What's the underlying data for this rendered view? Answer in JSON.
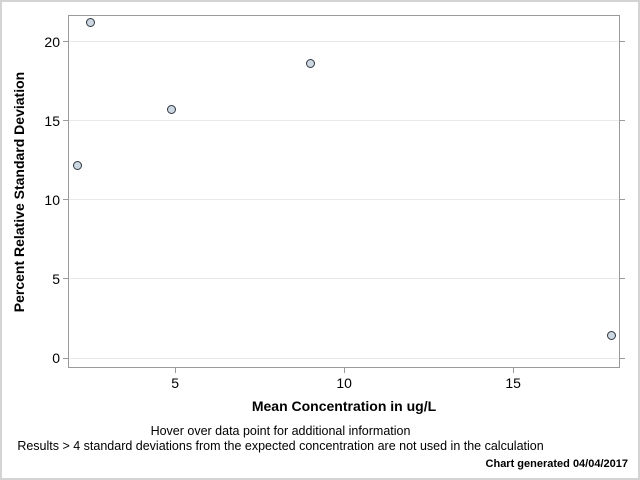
{
  "chart_data": {
    "type": "scatter",
    "title": "",
    "xlabel": "Mean Concentration in ug/L",
    "ylabel": "Percent Relative Standard Deviation",
    "xlim": [
      1.83,
      18.16
    ],
    "ylim": [
      -0.63,
      21.69
    ],
    "x_ticks": [
      5,
      10,
      15
    ],
    "y_ticks": [
      0,
      5,
      10,
      15,
      20
    ],
    "grid": "horizontal",
    "legend": "none",
    "series": [
      {
        "name": "percent-relative-standard-deviation",
        "marker": "circle",
        "points": [
          {
            "x": 2.1,
            "y": 12.2
          },
          {
            "x": 2.5,
            "y": 21.2
          },
          {
            "x": 4.9,
            "y": 15.7
          },
          {
            "x": 9.0,
            "y": 18.6
          },
          {
            "x": 17.9,
            "y": 1.4
          }
        ]
      }
    ]
  },
  "footnotes": {
    "hover": "Hover over data point for additional information",
    "results": "Results > 4 standard deviations from the expected concentration are not used in the calculation",
    "generated": "Chart generated 04/04/2017"
  },
  "colors": {
    "marker_fill": "#cdd7e2",
    "marker_stroke": "#2f3640",
    "gridline": "#e8e8e8",
    "frame": "#9a9a9a",
    "tick": "#9a9a9a",
    "text": "#000000",
    "border": "#d4d4d4"
  }
}
